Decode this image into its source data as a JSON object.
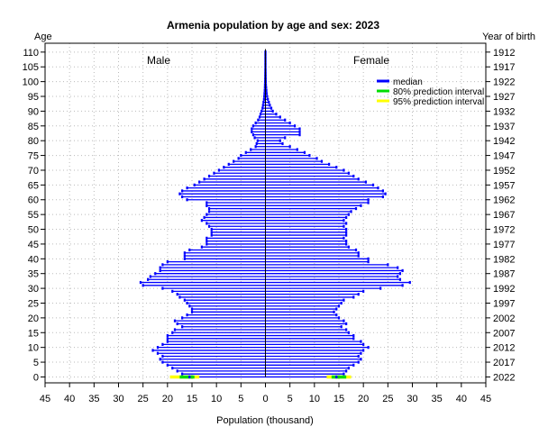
{
  "chart_data": {
    "type": "bar",
    "orientation": "horizontal-pyramid",
    "title": "Armenia population by age and sex: 2023",
    "xlabel": "Population (thousand)",
    "ylabel_left": "Age",
    "ylabel_right": "Year of birth",
    "left_group_label": "Male",
    "right_group_label": "Female",
    "xlim": [
      -45,
      45
    ],
    "x_ticks": [
      -45,
      -40,
      -35,
      -30,
      -25,
      -20,
      -15,
      -10,
      -5,
      0,
      5,
      10,
      15,
      20,
      25,
      30,
      35,
      40,
      45
    ],
    "x_tick_labels": [
      "45",
      "40",
      "35",
      "30",
      "25",
      "20",
      "15",
      "10",
      "5",
      "0",
      "5",
      "10",
      "15",
      "20",
      "25",
      "30",
      "35",
      "40",
      "45"
    ],
    "ylim": [
      0,
      110
    ],
    "age_ticks": [
      0,
      5,
      10,
      15,
      20,
      25,
      30,
      35,
      40,
      45,
      50,
      55,
      60,
      65,
      70,
      75,
      80,
      85,
      90,
      95,
      100,
      105,
      110
    ],
    "year_ticks": [
      "2022",
      "2017",
      "2012",
      "2007",
      "2002",
      "1997",
      "1992",
      "1987",
      "1982",
      "1977",
      "1972",
      "1967",
      "1962",
      "1957",
      "1952",
      "1947",
      "1942",
      "1937",
      "1932",
      "1927",
      "1922",
      "1917",
      "1912"
    ],
    "grid": true,
    "legend_position": "upper-right",
    "legend": [
      {
        "label": "median",
        "color": "#0000ff"
      },
      {
        "label": "80% prediction interval",
        "color": "#00dd00"
      },
      {
        "label": "95% prediction interval",
        "color": "#ffff00"
      }
    ],
    "ages": [
      0,
      1,
      2,
      3,
      4,
      5,
      6,
      7,
      8,
      9,
      10,
      11,
      12,
      13,
      14,
      15,
      16,
      17,
      18,
      19,
      20,
      21,
      22,
      23,
      24,
      25,
      26,
      27,
      28,
      29,
      30,
      31,
      32,
      33,
      34,
      35,
      36,
      37,
      38,
      39,
      40,
      41,
      42,
      43,
      44,
      45,
      46,
      47,
      48,
      49,
      50,
      51,
      52,
      53,
      54,
      55,
      56,
      57,
      58,
      59,
      60,
      61,
      62,
      63,
      64,
      65,
      66,
      67,
      68,
      69,
      70,
      71,
      72,
      73,
      74,
      75,
      76,
      77,
      78,
      79,
      80,
      81,
      82,
      83,
      84,
      85,
      86,
      87,
      88,
      89,
      90,
      91,
      92,
      93,
      94,
      95,
      96,
      97,
      98,
      99,
      100,
      101,
      102,
      103,
      104,
      105,
      106,
      107,
      108,
      109,
      110
    ],
    "series": [
      {
        "name": "Male",
        "values": [
          15.5,
          17,
          18,
          19,
          20,
          21,
          21.5,
          21,
          22,
          23,
          22,
          21,
          20,
          20,
          20,
          19,
          18.5,
          17,
          18,
          18.5,
          17,
          16,
          15,
          15,
          15.5,
          16,
          16.5,
          17.5,
          18,
          19,
          21,
          25,
          25.5,
          24,
          23.5,
          22.5,
          21.5,
          21.5,
          21,
          20,
          16.5,
          16.5,
          16.5,
          15.5,
          13,
          12,
          12,
          12,
          11,
          11,
          11,
          11.5,
          12,
          13,
          12.5,
          12,
          11.5,
          11.5,
          12,
          12,
          16,
          17,
          17.5,
          17,
          16,
          14.5,
          13.5,
          12.5,
          11.5,
          10.5,
          9.5,
          8.5,
          7.5,
          6.5,
          5.5,
          5,
          4,
          3,
          2,
          1.8,
          1.6,
          2.2,
          2.5,
          2.8,
          2.8,
          2.5,
          2,
          1.5,
          1.2,
          1,
          0.8,
          0.6,
          0.5,
          0.4,
          0.3,
          0.25,
          0.2,
          0.15,
          0.12,
          0.1,
          0.08,
          0.06,
          0.05,
          0.04,
          0.03,
          0.02,
          0.02,
          0.01,
          0.01,
          0.01,
          0.01,
          0.01,
          0.01
        ]
      },
      {
        "name": "Female",
        "values": [
          14.5,
          16,
          16.5,
          17,
          18,
          19,
          19.5,
          19,
          19.5,
          20,
          21,
          20,
          19.5,
          18,
          18,
          17,
          16.5,
          15.5,
          16.5,
          16,
          15,
          14.5,
          14,
          14.5,
          15,
          15.5,
          16,
          18,
          19,
          20,
          23.5,
          28,
          29.5,
          27.5,
          27,
          27.5,
          28,
          27,
          25,
          21,
          21,
          19,
          19,
          18.5,
          17,
          16.5,
          16.5,
          16,
          16.5,
          16.5,
          16.5,
          16,
          16.5,
          16,
          16.5,
          17,
          17.5,
          18.5,
          19.5,
          21,
          21,
          24,
          24.5,
          24,
          23,
          22,
          20.5,
          19,
          18,
          17,
          16,
          14.5,
          13,
          11.5,
          10.5,
          9,
          8,
          6.5,
          5,
          3.5,
          3,
          4,
          7,
          7,
          7,
          6,
          5,
          4,
          3,
          2.2,
          1.5,
          1.2,
          0.9,
          0.7,
          0.5,
          0.35,
          0.25,
          0.2,
          0.15,
          0.1,
          0.08,
          0.06,
          0.05,
          0.04,
          0.03,
          0.02,
          0.02,
          0.01,
          0.01,
          0.01,
          0.01
        ]
      }
    ],
    "interval_80": {
      "age": 0,
      "male": [
        14.5,
        17.5
      ],
      "female": [
        13.5,
        16.5
      ]
    },
    "interval_95": {
      "age": 0,
      "male": [
        13.5,
        19.5
      ],
      "female": [
        12.5,
        17.5
      ]
    }
  }
}
